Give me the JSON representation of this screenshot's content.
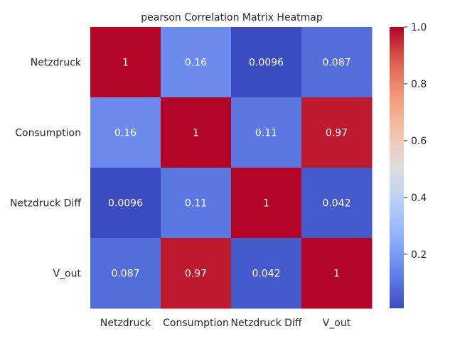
{
  "chart_data": {
    "type": "heatmap",
    "title": "pearson Correlation Matrix Heatmap",
    "x_labels": [
      "Netzdruck",
      "Consumption",
      "Netzdruck Diff",
      "V_out"
    ],
    "y_labels": [
      "Netzdruck",
      "Consumption",
      "Netzdruck Diff",
      "V_out"
    ],
    "values": [
      [
        1,
        0.16,
        0.0096,
        0.087
      ],
      [
        0.16,
        1,
        0.11,
        0.97
      ],
      [
        0.0096,
        0.11,
        1,
        0.042
      ],
      [
        0.087,
        0.97,
        0.042,
        1
      ]
    ],
    "annotations": [
      [
        "1",
        "0.16",
        "0.0096",
        "0.087"
      ],
      [
        "0.16",
        "1",
        "0.11",
        "0.97"
      ],
      [
        "0.0096",
        "0.11",
        "1",
        "0.042"
      ],
      [
        "0.087",
        "0.97",
        "0.042",
        "1"
      ]
    ],
    "colormap": "coolwarm",
    "vmin": 0.0096,
    "vmax": 1.0,
    "colorbar_ticks": [
      0.2,
      0.4,
      0.6,
      0.8,
      1.0
    ],
    "colorbar_tick_labels": [
      "0.2",
      "0.4",
      "0.6",
      "0.8",
      "1.0"
    ]
  }
}
